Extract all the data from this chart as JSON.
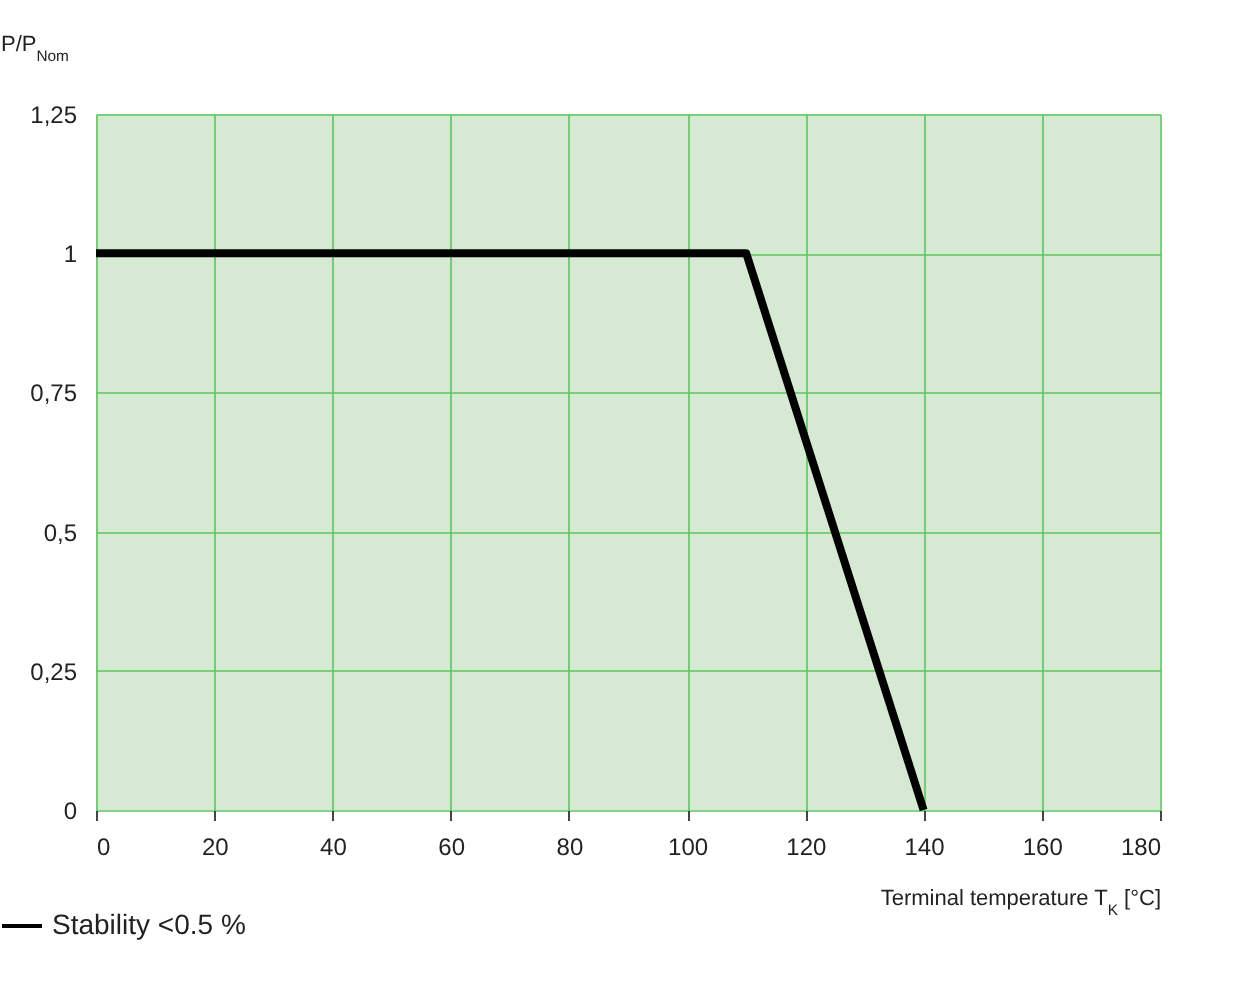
{
  "chart_data": {
    "type": "line",
    "xlabel": "Terminal temperature T$_{K}$ [°C]",
    "ylabel": "P/P$_{Nom}$",
    "x": [
      0,
      110,
      140
    ],
    "series": [
      {
        "name": "Stability <0.5 %",
        "color": "#000000",
        "values": [
          1,
          1,
          0
        ]
      }
    ],
    "xlim": [
      0,
      180
    ],
    "xticks": [
      0,
      20,
      40,
      60,
      80,
      100,
      120,
      140,
      160,
      180
    ],
    "ylim": [
      0,
      1.25
    ],
    "yticks": [
      0,
      {
        "value": 0.25,
        "label": "0,25"
      },
      {
        "value": 0.5,
        "label": "0,5"
      },
      {
        "value": 0.75,
        "label": "0,75"
      },
      1,
      {
        "value": 1.25,
        "label": "1,25"
      }
    ],
    "grid": true,
    "legend": "bottom left"
  }
}
